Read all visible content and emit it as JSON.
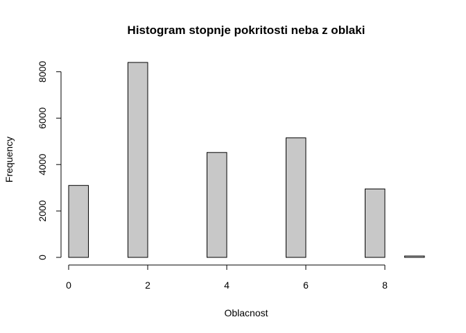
{
  "chart_data": {
    "type": "bar",
    "title": "Histogram stopnje pokritosti neba z oblaki",
    "xlabel": "Oblacnost",
    "ylabel": "Frequency",
    "bin_edges": [
      0,
      0.5,
      1,
      1.5,
      2,
      2.5,
      3,
      3.5,
      4,
      4.5,
      5,
      5.5,
      6,
      6.5,
      7,
      7.5,
      8,
      8.5,
      9
    ],
    "values": [
      3100,
      0,
      0,
      8400,
      0,
      0,
      0,
      4520,
      0,
      0,
      0,
      5150,
      0,
      0,
      0,
      2950,
      0,
      60
    ],
    "xlim": [
      0,
      9
    ],
    "ylim": [
      0,
      8400
    ],
    "x_ticks": [
      0,
      2,
      4,
      6,
      8
    ],
    "y_ticks": [
      0,
      2000,
      4000,
      6000,
      8000
    ],
    "bar_color": "#c8c8c8",
    "grid": false,
    "legend": "none"
  }
}
